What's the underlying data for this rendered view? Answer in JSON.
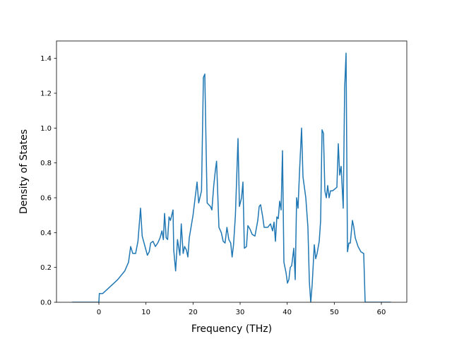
{
  "chart_data": {
    "type": "line",
    "x_label": "Frequency (THz)",
    "y_label": "Density of States",
    "xlim": [
      -9.0,
      65.4
    ],
    "ylim": [
      0,
      1.5
    ],
    "xticks": [
      0,
      10,
      20,
      30,
      40,
      50,
      60
    ],
    "yticks": [
      {
        "value": 0,
        "label": "0.0"
      },
      0.2,
      0.4,
      0.6,
      0.8,
      {
        "value": 1,
        "label": "1.0"
      },
      1.2,
      1.4
    ],
    "grid": false,
    "series": [
      {
        "color": "#1f77b4",
        "x": [
          -5.7,
          0,
          0.1,
          0.8,
          2,
          4,
          5.5,
          6.3,
          6.75,
          7.2,
          7.8,
          8.3,
          8.85,
          9.2,
          10,
          10.3,
          10.7,
          11,
          11.5,
          12,
          12.5,
          13,
          13.4,
          13.7,
          13.95,
          14.3,
          14.6,
          14.9,
          15.2,
          15.75,
          15.9,
          16.3,
          16.7,
          17.2,
          17.5,
          17.9,
          18.2,
          18.6,
          18.9,
          19.2,
          20,
          20.85,
          21.2,
          21.8,
          22.2,
          22.5,
          22.8,
          23,
          23.7,
          24,
          24.4,
          24.75,
          25,
          25.5,
          26,
          26.4,
          26.8,
          27.2,
          27.6,
          28,
          28.3,
          28.6,
          29,
          29.55,
          29.85,
          30.3,
          30.6,
          30.9,
          31.35,
          31.65,
          32.1,
          32.55,
          33.15,
          33.75,
          34.05,
          34.35,
          34.8,
          35.1,
          35.85,
          36.45,
          36.9,
          37.2,
          37.5,
          37.8,
          38.1,
          38.4,
          38.7,
          39,
          39.3,
          39.75,
          40.05,
          40.35,
          40.65,
          40.95,
          41.4,
          41.7,
          42,
          42.3,
          42.6,
          43.05,
          43.35,
          43.95,
          44.4,
          44.7,
          45,
          45.3,
          45.75,
          46.05,
          46.35,
          46.8,
          47.1,
          47.4,
          47.7,
          48,
          48.3,
          48.6,
          48.9,
          49.2,
          49.65,
          50.1,
          50.55,
          50.85,
          51.15,
          51.45,
          51.9,
          52.2,
          52.5,
          52.8,
          53.1,
          53.4,
          53.85,
          54.15,
          54.45,
          55.05,
          55.65,
          56.25,
          56.55,
          62
        ],
        "values": [
          0,
          0,
          0.05,
          0.05,
          0.08,
          0.13,
          0.18,
          0.23,
          0.32,
          0.28,
          0.28,
          0.35,
          0.54,
          0.38,
          0.3,
          0.27,
          0.29,
          0.34,
          0.35,
          0.32,
          0.34,
          0.37,
          0.41,
          0.36,
          0.51,
          0.37,
          0.36,
          0.49,
          0.47,
          0.53,
          0.3,
          0.18,
          0.36,
          0.27,
          0.45,
          0.28,
          0.32,
          0.3,
          0.26,
          0.37,
          0.5,
          0.69,
          0.57,
          0.64,
          1.29,
          1.31,
          0.85,
          0.57,
          0.55,
          0.53,
          0.67,
          0.76,
          0.81,
          0.43,
          0.4,
          0.35,
          0.34,
          0.43,
          0.36,
          0.34,
          0.26,
          0.33,
          0.5,
          0.94,
          0.55,
          0.6,
          0.69,
          0.31,
          0.32,
          0.44,
          0.42,
          0.39,
          0.38,
          0.47,
          0.55,
          0.56,
          0.49,
          0.43,
          0.43,
          0.45,
          0.41,
          0.46,
          0.35,
          0.49,
          0.48,
          0.58,
          0.53,
          0.87,
          0.23,
          0.17,
          0.11,
          0.13,
          0.2,
          0.21,
          0.31,
          0.13,
          0.6,
          0.54,
          0.74,
          1.0,
          0.72,
          0.6,
          0.43,
          0.12,
          0,
          0.1,
          0.33,
          0.25,
          0.28,
          0.35,
          0.47,
          0.99,
          0.97,
          0.64,
          0.6,
          0.67,
          0.6,
          0.64,
          0.64,
          0.65,
          0.66,
          0.91,
          0.73,
          0.78,
          0.54,
          1.23,
          1.43,
          0.29,
          0.34,
          0.34,
          0.47,
          0.43,
          0.37,
          0.32,
          0.29,
          0.28,
          0,
          0
        ]
      }
    ]
  }
}
